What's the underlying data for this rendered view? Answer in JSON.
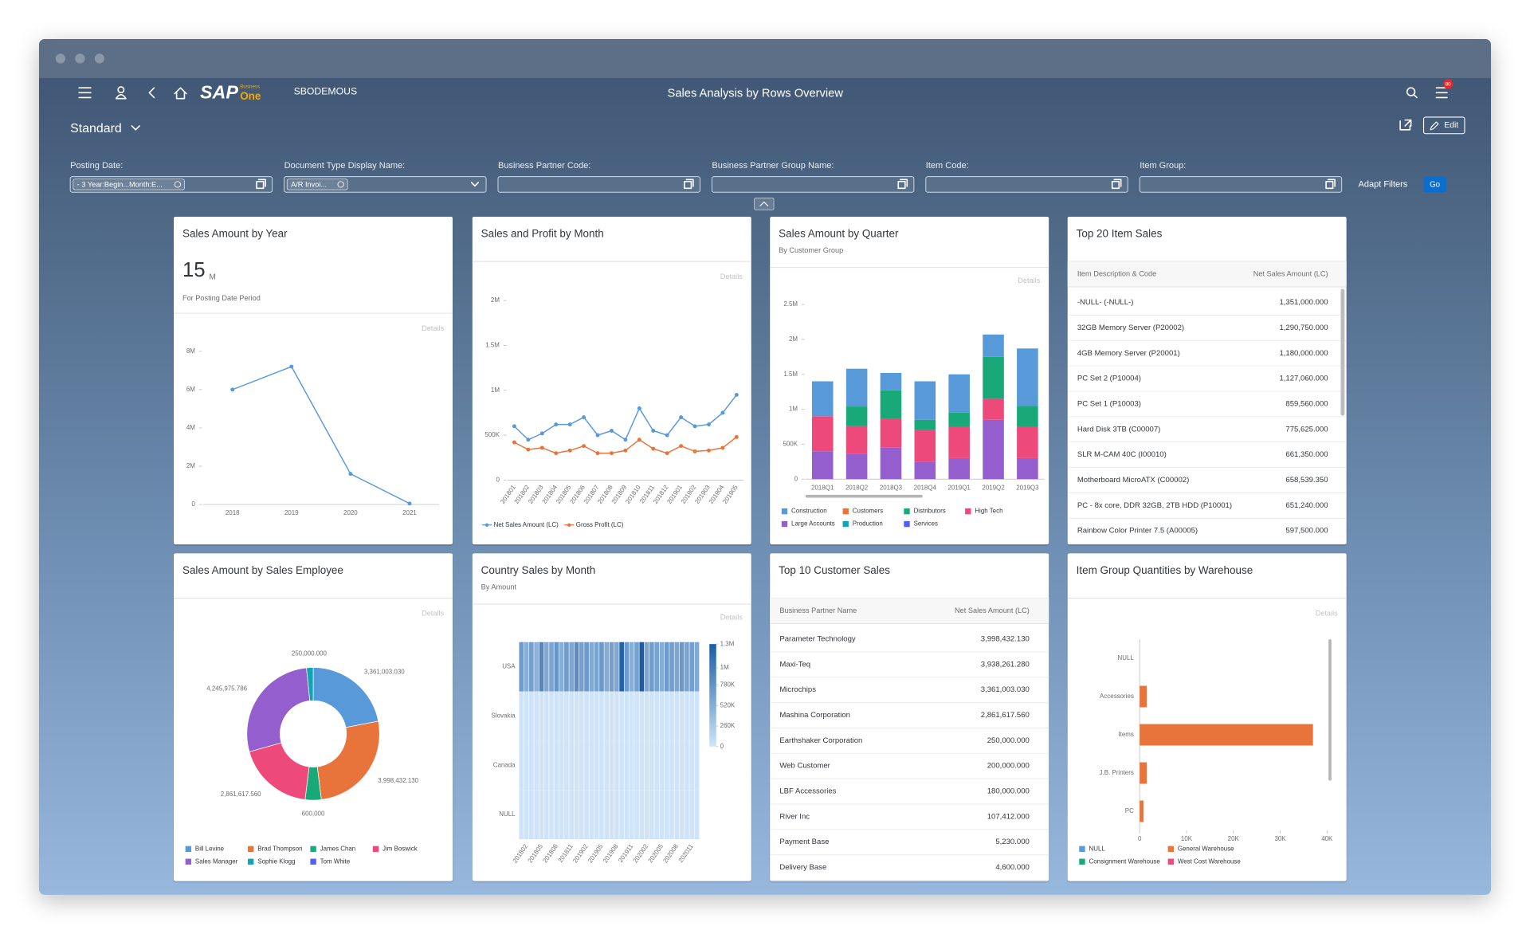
{
  "header": {
    "logo": "SAP",
    "logo_sub": "Business",
    "logo_one": "One",
    "company": "SBODEMOUS",
    "title": "Sales Analysis by Rows Overview",
    "notifications": "80"
  },
  "variant": "Standard",
  "edit": "Edit",
  "filters": [
    {
      "label": "Posting Date:",
      "value": "- 3 Year:Begin...Month:E..."
    },
    {
      "label": "Document Type Display Name:",
      "value": "A/R Invoi..."
    },
    {
      "label": "Business Partner Code:"
    },
    {
      "label": "Business Partner Group Name:"
    },
    {
      "label": "Item Code:"
    },
    {
      "label": "Item Group:"
    }
  ],
  "adapt_filters": "Adapt Filters",
  "go": "Go",
  "cards": [
    {
      "title": "Sales Amount by Year",
      "kpi": "15",
      "kpi_unit": "M",
      "kpi_label": "For Posting Date Period",
      "details": "Details",
      "chart_data": {
        "type": "line",
        "categories": [
          "2018",
          "2019",
          "2020",
          "2021"
        ],
        "values": [
          6,
          7.2,
          1.6,
          0.05
        ],
        "color": "#5899da",
        "ylim": [
          0,
          8
        ],
        "yticks": [
          0,
          {
            "value": 2,
            "label": "2M"
          },
          {
            "value": 4,
            "label": "4M"
          },
          {
            "value": 6,
            "label": "6M"
          },
          {
            "value": 8,
            "label": "8M"
          }
        ]
      }
    },
    {
      "title": "Sales and Profit by Month",
      "details": "Details",
      "chart_data": {
        "type": "line",
        "categories": [
          "201801",
          "201802",
          "201803",
          "201804",
          "201805",
          "201806",
          "201807",
          "201808",
          "201809",
          "201810",
          "201811",
          "201812",
          "201901",
          "201902",
          "201903",
          "201904",
          "201905"
        ],
        "series": [
          {
            "name": "Net Sales Amount (LC)",
            "color": "#5899da",
            "values": [
              0.6,
              0.45,
              0.52,
              0.62,
              0.62,
              0.7,
              0.5,
              0.55,
              0.45,
              0.8,
              0.55,
              0.5,
              0.7,
              0.6,
              0.62,
              0.75,
              0.95
            ]
          },
          {
            "name": "Gross Profit (LC)",
            "color": "#e8743b",
            "values": [
              0.42,
              0.34,
              0.36,
              0.3,
              0.33,
              0.38,
              0.3,
              0.3,
              0.33,
              0.45,
              0.35,
              0.3,
              0.38,
              0.32,
              0.33,
              0.36,
              0.48
            ]
          }
        ],
        "ylim": [
          0,
          2
        ],
        "yticks": [
          0,
          {
            "value": 0.5,
            "label": "500K"
          },
          {
            "value": 1,
            "label": "1M"
          },
          {
            "value": 1.5,
            "label": "1.5M"
          },
          {
            "value": 2,
            "label": "2M"
          }
        ]
      }
    },
    {
      "title": "Sales Amount by Quarter",
      "subtitle": "By Customer Group",
      "details": "Details",
      "chart_data": {
        "type": "stacked_bar",
        "categories": [
          "2018Q1",
          "2018Q2",
          "2018Q3",
          "2018Q4",
          "2019Q1",
          "2019Q2",
          "2019Q3"
        ],
        "series": [
          {
            "name": "Construction",
            "color": "#5899da",
            "values": [
              0.5,
              0.54,
              0.25,
              0.55,
              0.55,
              0.32,
              0.82
            ]
          },
          {
            "name": "Customers",
            "color": "#e8743b",
            "values": [
              0,
              0,
              0,
              0,
              0,
              0,
              0
            ]
          },
          {
            "name": "Distributors",
            "color": "#19a979",
            "values": [
              0,
              0.28,
              0.4,
              0.15,
              0.2,
              0.6,
              0.3
            ]
          },
          {
            "name": "High Tech",
            "color": "#ed4a7b",
            "values": [
              0.5,
              0.4,
              0.42,
              0.45,
              0.45,
              0.3,
              0.45
            ]
          },
          {
            "name": "Large Accounts",
            "color": "#945ecf",
            "values": [
              0.4,
              0.36,
              0.45,
              0.25,
              0.3,
              0.85,
              0.3
            ]
          },
          {
            "name": "Production",
            "color": "#13a4b4",
            "values": [
              0,
              0,
              0,
              0,
              0,
              0,
              0
            ]
          },
          {
            "name": "Services",
            "color": "#525df4",
            "values": [
              0,
              0,
              0,
              0,
              0,
              0,
              0
            ]
          }
        ],
        "ylim": [
          0,
          2.5
        ],
        "yticks": [
          0,
          {
            "value": 0.5,
            "label": "500K"
          },
          {
            "value": 1,
            "label": "1M"
          },
          {
            "value": 1.5,
            "label": "1.5M"
          },
          {
            "value": 2,
            "label": "2M"
          },
          {
            "value": 2.5,
            "label": "2.5M"
          }
        ]
      }
    },
    {
      "title": "Top 20 Item Sales",
      "table": {
        "columns": [
          "Item Description & Code",
          "Net Sales Amount (LC)"
        ],
        "rows": [
          [
            "-NULL- (-NULL-)",
            "1,351,000.000"
          ],
          [
            "32GB Memory Server (P20002)",
            "1,290,750.000"
          ],
          [
            "4GB Memory Server (P20001)",
            "1,180,000.000"
          ],
          [
            "PC Set 2 (P10004)",
            "1,127,060.000"
          ],
          [
            "PC Set 1 (P10003)",
            "859,560.000"
          ],
          [
            "Hard Disk 3TB (C00007)",
            "775,625.000"
          ],
          [
            "SLR M-CAM 40C (I00010)",
            "661,350.000"
          ],
          [
            "Motherboard MicroATX (C00002)",
            "658,539.350"
          ],
          [
            "PC - 8x core, DDR 32GB, 2TB HDD (P10001)",
            "651,240.000"
          ],
          [
            "Rainbow Color Printer 7.5 (A00005)",
            "597,500.000"
          ]
        ]
      }
    },
    {
      "title": "Sales Amount by Sales Employee",
      "details": "Details",
      "chart_data": {
        "type": "donut",
        "categories": [
          "Bill Levine",
          "Brad Thompson",
          "James Chan",
          "Jim Boswick",
          "Sales Manager",
          "Sophie Klogg",
          "Tom White"
        ],
        "values": [
          3361003.03,
          3998432.13,
          600000,
          2861617.56,
          4245975.786,
          250000,
          null
        ],
        "value_labels": [
          "3,361,003.030",
          "3,998,432.130",
          "600,000",
          "2,861,617.560",
          "4,245,975.786",
          "250,000.000",
          null
        ],
        "colors": [
          "#5899da",
          "#e8743b",
          "#19a979",
          "#ed4a7b",
          "#945ecf",
          "#13a4b4",
          "#525df4"
        ]
      }
    },
    {
      "title": "Country Sales by Month",
      "subtitle": "By Amount",
      "details": "Details",
      "chart_data": {
        "type": "heatmap",
        "rows": [
          "USA",
          "Slovakia",
          "Canada",
          "NULL"
        ],
        "categories": [
          null,
          "201802",
          null,
          null,
          "201805",
          null,
          null,
          "201808",
          null,
          null,
          "201811",
          null,
          null,
          "201902",
          null,
          null,
          "201905",
          null,
          null,
          "201908",
          null,
          null,
          "201911",
          null,
          null,
          "202002",
          null,
          null,
          "202005",
          null,
          null,
          "202008",
          null,
          null,
          "202011",
          null
        ],
        "values": [
          [
            700,
            520,
            650,
            480,
            900,
            560,
            610,
            750,
            520,
            680,
            590,
            820,
            640,
            700,
            560,
            600,
            720,
            540,
            660,
            580,
            1250,
            700,
            520,
            640,
            1300,
            590,
            680,
            620,
            540,
            700,
            660,
            580,
            720,
            600,
            650,
            560
          ],
          [
            0,
            0,
            0,
            0,
            0,
            0,
            0,
            0,
            0,
            0,
            0,
            0,
            0,
            0,
            0,
            0,
            0,
            0,
            0,
            0,
            0,
            0,
            0,
            0,
            0,
            0,
            0,
            0,
            0,
            0,
            0,
            0,
            0,
            0,
            0,
            0
          ],
          [
            0,
            0,
            0,
            0,
            0,
            0,
            0,
            0,
            0,
            0,
            0,
            0,
            0,
            0,
            0,
            0,
            0,
            0,
            0,
            0,
            0,
            0,
            0,
            0,
            0,
            0,
            0,
            0,
            0,
            0,
            0,
            0,
            0,
            0,
            0,
            0
          ],
          [
            0,
            0,
            0,
            0,
            0,
            0,
            0,
            0,
            0,
            0,
            0,
            0,
            0,
            0,
            0,
            0,
            0,
            0,
            0,
            0,
            0,
            0,
            0,
            0,
            0,
            0,
            0,
            0,
            0,
            0,
            0,
            0,
            0,
            0,
            0,
            0
          ]
        ],
        "colorbar_lim": [
          0,
          1300
        ],
        "colorbar_ticks": [
          0,
          {
            "value": 260,
            "label": "260K"
          },
          {
            "value": 520,
            "label": "520K"
          },
          {
            "value": 780,
            "label": "780K"
          },
          {
            "value": 1000,
            "label": "1M"
          },
          {
            "value": 1300,
            "label": "1.3M"
          }
        ],
        "colors": [
          "#cfe4f8",
          "#1a5ca4"
        ]
      }
    },
    {
      "title": "Top 10 Customer Sales",
      "table": {
        "columns": [
          "Business Partner Name",
          "Net Sales Amount (LC)"
        ],
        "rows": [
          [
            "Parameter Technology",
            "3,998,432.130"
          ],
          [
            "Maxi-Teq",
            "3,938,261.280"
          ],
          [
            "Microchips",
            "3,361,003.030"
          ],
          [
            "Mashina Corporation",
            "2,861,617.560"
          ],
          [
            "Earthshaker Corporation",
            "250,000.000"
          ],
          [
            "Web Customer",
            "200,000.000"
          ],
          [
            "LBF Accessories",
            "180,000.000"
          ],
          [
            "River Inc",
            "107,412.000"
          ],
          [
            "Payment Base",
            "5,230.000"
          ],
          [
            "Delivery Base",
            "4,600.000"
          ]
        ]
      }
    },
    {
      "title": "Item Group Quantities by Warehouse",
      "details": "Details",
      "chart_data": {
        "type": "hbar",
        "categories": [
          "NULL",
          "Accessories",
          "Items",
          "J.B. Printers",
          "PC"
        ],
        "series": [
          {
            "name": "NULL",
            "color": "#5899da",
            "values": [
              0,
              0,
              0,
              0,
              0
            ]
          },
          {
            "name": "General Warehouse",
            "color": "#e8743b",
            "values": [
              0,
              1500,
              37000,
              1500,
              800
            ]
          },
          {
            "name": "Consignment Warehouse",
            "color": "#19a979",
            "values": [
              0,
              0,
              0,
              0,
              0
            ]
          },
          {
            "name": "West Cost Warehouse",
            "color": "#ed4a7b",
            "values": [
              0,
              0,
              0,
              0,
              0
            ]
          }
        ],
        "xlim": [
          0,
          40000
        ],
        "xticks": [
          0,
          {
            "value": 10000,
            "label": "10K"
          },
          {
            "value": 20000,
            "label": "20K"
          },
          {
            "value": 30000,
            "label": "30K"
          },
          {
            "value": 40000,
            "label": "40K"
          }
        ]
      }
    }
  ]
}
